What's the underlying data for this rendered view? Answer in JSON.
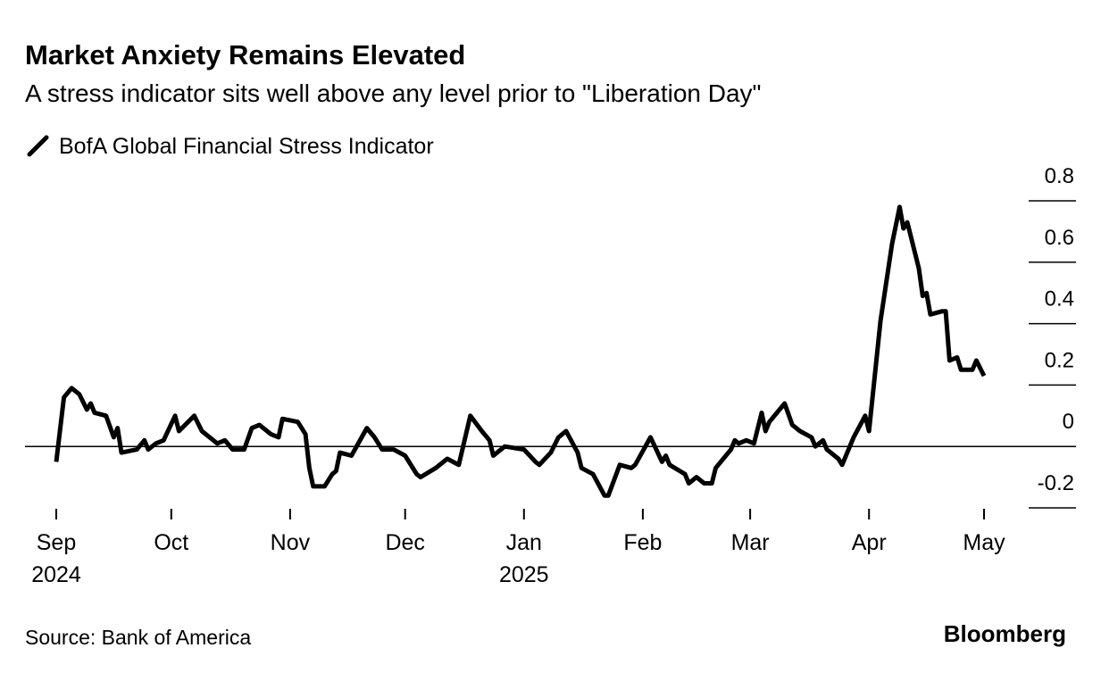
{
  "chart_data": {
    "type": "line",
    "title": "Market Anxiety Remains Elevated",
    "subtitle": "A stress indicator sits well above any level prior to \"Liberation Day\"",
    "source": "Source: Bank of America",
    "brand": "Bloomberg",
    "series": [
      {
        "name": "BofA Global Financial Stress Indicator",
        "color": "#000000",
        "x": [
          0,
          2,
          4,
          6,
          8,
          9,
          10,
          13,
          15,
          16,
          17,
          21,
          23,
          24,
          26,
          28,
          31,
          32,
          36,
          38,
          42,
          44,
          46,
          49,
          51,
          53,
          56,
          58,
          59,
          63,
          65,
          66,
          67,
          70,
          72,
          73,
          74,
          77,
          81,
          83,
          85,
          88,
          91,
          94,
          95,
          99,
          102,
          105,
          108,
          111,
          113,
          114,
          117,
          122,
          125,
          126,
          129,
          131,
          133,
          136,
          137,
          140,
          143,
          144,
          147,
          150,
          151,
          155,
          158,
          159,
          160,
          164,
          165,
          167,
          169,
          171,
          172,
          176,
          177,
          178,
          180,
          182,
          184,
          185,
          186,
          190,
          192,
          194,
          197,
          198,
          200,
          201,
          204,
          205,
          208,
          211,
          212,
          215,
          218,
          220,
          221,
          222,
          225,
          226,
          227,
          228,
          231,
          232,
          233,
          235,
          236,
          239,
          240,
          242
        ],
        "values": [
          -0.05,
          0.16,
          0.19,
          0.17,
          0.12,
          0.14,
          0.11,
          0.1,
          0.03,
          0.06,
          -0.02,
          -0.01,
          0.02,
          -0.01,
          0.01,
          0.02,
          0.1,
          0.05,
          0.1,
          0.05,
          0.01,
          0.02,
          -0.01,
          -0.01,
          0.06,
          0.07,
          0.04,
          0.03,
          0.09,
          0.08,
          0.04,
          -0.07,
          -0.13,
          -0.13,
          -0.09,
          -0.08,
          -0.02,
          -0.03,
          0.06,
          0.03,
          -0.01,
          -0.01,
          -0.03,
          -0.09,
          -0.1,
          -0.07,
          -0.04,
          -0.06,
          0.1,
          0.05,
          0.02,
          -0.03,
          0.0,
          -0.01,
          -0.05,
          -0.06,
          -0.02,
          0.03,
          0.05,
          -0.02,
          -0.07,
          -0.09,
          -0.16,
          -0.16,
          -0.06,
          -0.07,
          -0.06,
          0.03,
          -0.05,
          -0.03,
          -0.06,
          -0.09,
          -0.12,
          -0.1,
          -0.12,
          -0.12,
          -0.07,
          -0.01,
          0.02,
          0.01,
          0.02,
          0.01,
          0.11,
          0.05,
          0.08,
          0.14,
          0.07,
          0.05,
          0.03,
          0.0,
          0.02,
          -0.01,
          -0.04,
          -0.06,
          0.03,
          0.1,
          0.05,
          0.41,
          0.66,
          0.78,
          0.71,
          0.73,
          0.58,
          0.49,
          0.5,
          0.43,
          0.44,
          0.44,
          0.28,
          0.29,
          0.25,
          0.25,
          0.28,
          0.23
        ]
      }
    ],
    "xlim": [
      0,
      242
    ],
    "xticks": [
      {
        "value": 0,
        "label": "Sep 2024"
      },
      {
        "value": 30,
        "label": "Oct"
      },
      {
        "value": 61,
        "label": "Nov"
      },
      {
        "value": 91,
        "label": "Dec"
      },
      {
        "value": 122,
        "label": "Jan 2025"
      },
      {
        "value": 153,
        "label": "Feb"
      },
      {
        "value": 181,
        "label": "Mar"
      },
      {
        "value": 212,
        "label": "Apr"
      },
      {
        "value": 242,
        "label": "May"
      }
    ],
    "ylim": [
      -0.2,
      0.8
    ],
    "yticks": [
      -0.2,
      0,
      0.2,
      0.4,
      0.6,
      0.8
    ],
    "grid": true,
    "zero_line": true
  }
}
